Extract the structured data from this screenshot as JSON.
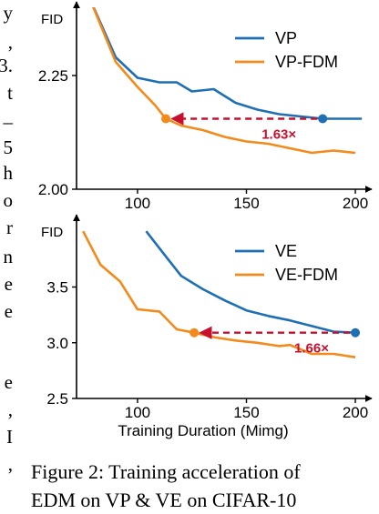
{
  "side_text": [
    "y",
    ",",
    "3.",
    "t",
    "–",
    "5",
    "h",
    "o",
    "r",
    "n",
    "e",
    "e",
    "e",
    ",",
    "I",
    ","
  ],
  "caption": {
    "line1": "Figure 2: Training acceleration of",
    "line2": "EDM on VP & VE on CIFAR-10"
  },
  "chart_data": [
    {
      "type": "line",
      "ylabel": "FID",
      "xlabel": "",
      "xlim": [
        72,
        205
      ],
      "ylim": [
        2.0,
        2.4
      ],
      "xticks": [
        100,
        150,
        200
      ],
      "yticks": [
        2.0,
        2.25
      ],
      "ytick_labels": [
        "2.00",
        "2.25"
      ],
      "legend_position": "upper-right",
      "series": [
        {
          "name": "VP",
          "color": "#1f6fb4",
          "x": [
            78,
            90,
            100,
            110,
            118,
            125,
            135,
            145,
            155,
            165,
            175,
            185,
            193,
            203
          ],
          "y": [
            2.42,
            2.29,
            2.245,
            2.235,
            2.235,
            2.215,
            2.22,
            2.19,
            2.175,
            2.165,
            2.16,
            2.155,
            2.155,
            2.155
          ]
        },
        {
          "name": "VP-FDM",
          "color": "#f28a1c",
          "x": [
            78,
            90,
            100,
            108,
            113,
            120,
            130,
            140,
            150,
            160,
            170,
            180,
            190,
            200
          ],
          "y": [
            2.42,
            2.28,
            2.225,
            2.185,
            2.155,
            2.14,
            2.13,
            2.115,
            2.105,
            2.1,
            2.09,
            2.08,
            2.085,
            2.08
          ]
        }
      ],
      "annotation": {
        "text": "1.63×",
        "color": "#c8102e",
        "from": [
          185,
          2.155
        ],
        "to": [
          113,
          2.155
        ]
      }
    },
    {
      "type": "line",
      "ylabel": "FID",
      "xlabel": "Training Duration (Mimg)",
      "xlim": [
        72,
        205
      ],
      "ylim": [
        2.5,
        4.1
      ],
      "xticks": [
        100,
        150,
        200
      ],
      "yticks": [
        2.5,
        3.0,
        3.5
      ],
      "ytick_labels": [
        "2.5",
        "3.0",
        "3.5"
      ],
      "legend_position": "upper-right",
      "series": [
        {
          "name": "VE",
          "color": "#1f6fb4",
          "x": [
            104,
            112,
            120,
            130,
            140,
            150,
            160,
            170,
            180,
            190,
            200
          ],
          "y": [
            4.0,
            3.8,
            3.6,
            3.48,
            3.38,
            3.29,
            3.24,
            3.2,
            3.15,
            3.1,
            3.09
          ]
        },
        {
          "name": "VE-FDM",
          "color": "#f28a1c",
          "x": [
            75,
            83,
            92,
            100,
            110,
            118,
            126,
            135,
            145,
            155,
            165,
            170,
            180,
            190,
            200
          ],
          "y": [
            4.0,
            3.7,
            3.55,
            3.3,
            3.28,
            3.12,
            3.09,
            3.05,
            3.02,
            3.0,
            2.97,
            2.98,
            2.9,
            2.9,
            2.87
          ]
        }
      ],
      "annotation": {
        "text": "1.66×",
        "color": "#c8102e",
        "from": [
          200,
          3.09
        ],
        "to": [
          126,
          3.09
        ]
      }
    }
  ]
}
